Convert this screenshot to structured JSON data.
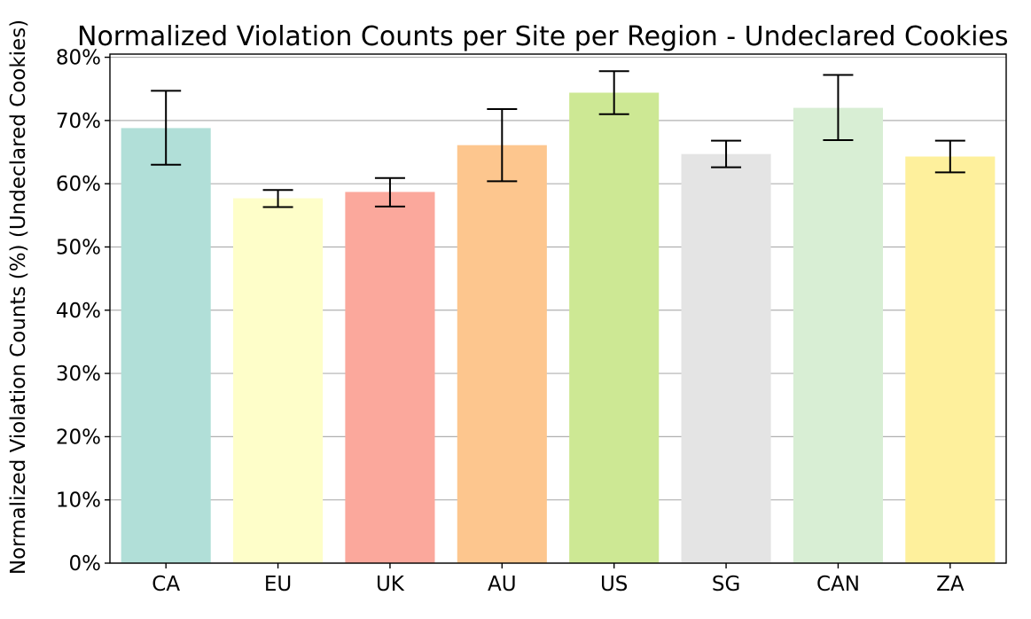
{
  "chart_data": {
    "type": "bar",
    "title": "Normalized Violation Counts per Site per Region - Undeclared Cookies",
    "xlabel": "",
    "ylabel": "Normalized Violation Counts (%) (Undeclared Cookies)",
    "categories": [
      "CA",
      "EU",
      "UK",
      "AU",
      "US",
      "SG",
      "CAN",
      "ZA"
    ],
    "values": [
      68.8,
      57.7,
      58.7,
      66.1,
      74.4,
      64.7,
      72.0,
      64.3
    ],
    "error_low": [
      63.0,
      56.3,
      56.4,
      60.4,
      71.0,
      62.6,
      66.9,
      61.8
    ],
    "error_high": [
      74.7,
      59.0,
      60.9,
      71.8,
      77.8,
      66.8,
      77.2,
      66.8
    ],
    "colors": [
      "#b1dfd8",
      "#fefec9",
      "#fba89c",
      "#fdc68e",
      "#cde894",
      "#e4e4e4",
      "#d8eed4",
      "#fef09c"
    ],
    "yticks": [
      0,
      10,
      20,
      30,
      40,
      50,
      60,
      70,
      80
    ],
    "ytick_labels": [
      "0%",
      "10%",
      "20%",
      "30%",
      "40%",
      "50%",
      "60%",
      "70%",
      "80%"
    ],
    "ylim": [
      0,
      80.5
    ],
    "grid": "horizontal"
  }
}
